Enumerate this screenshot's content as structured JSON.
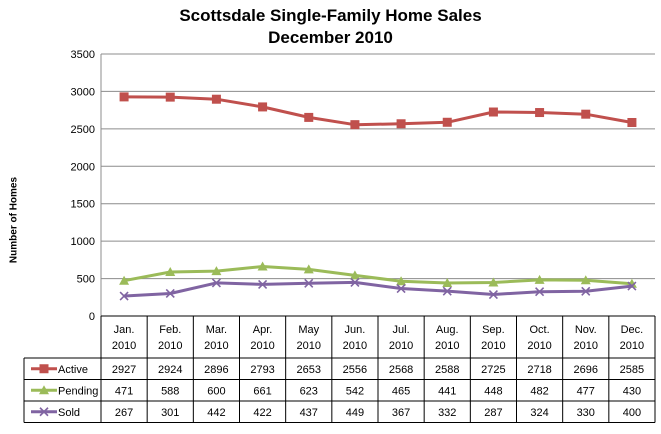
{
  "chart_data": {
    "type": "line",
    "title": "Scottsdale Single-Family Home Sales",
    "subtitle": "December 2010",
    "xlabel": "",
    "ylabel": "Number of Homes",
    "ylim": [
      0,
      3500
    ],
    "yticks": [
      0,
      500,
      1000,
      1500,
      2000,
      2500,
      3000,
      3500
    ],
    "grid": true,
    "legend": "data-table",
    "categories": [
      [
        "Jan.",
        "2010"
      ],
      [
        "Feb.",
        "2010"
      ],
      [
        "Mar.",
        "2010"
      ],
      [
        "Apr.",
        "2010"
      ],
      [
        "May",
        "2010"
      ],
      [
        "Jun.",
        "2010"
      ],
      [
        "Jul.",
        "2010"
      ],
      [
        "Aug.",
        "2010"
      ],
      [
        "Sep.",
        "2010"
      ],
      [
        "Oct.",
        "2010"
      ],
      [
        "Nov.",
        "2010"
      ],
      [
        "Dec.",
        "2010"
      ]
    ],
    "series": [
      {
        "name": "Active",
        "color": "#c0504d",
        "marker": "square",
        "values": [
          2927,
          2924,
          2896,
          2793,
          2653,
          2556,
          2568,
          2588,
          2725,
          2718,
          2696,
          2585
        ]
      },
      {
        "name": "Pending",
        "color": "#9bbb59",
        "marker": "triangle",
        "values": [
          471,
          588,
          600,
          661,
          623,
          542,
          465,
          441,
          448,
          482,
          477,
          430
        ]
      },
      {
        "name": "Sold",
        "color": "#8064a2",
        "marker": "x",
        "values": [
          267,
          301,
          442,
          422,
          437,
          449,
          367,
          332,
          287,
          324,
          330,
          400
        ]
      }
    ]
  }
}
